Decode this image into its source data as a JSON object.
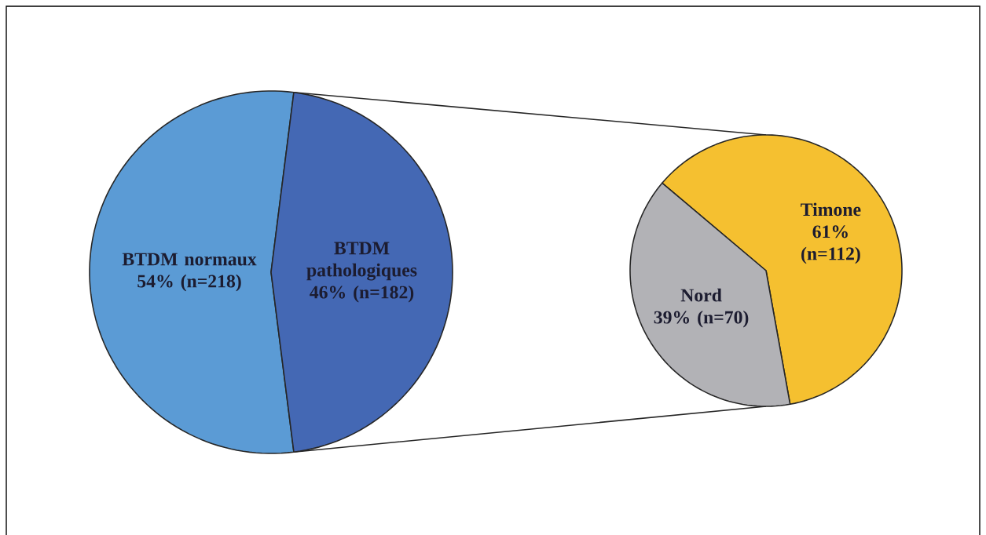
{
  "chart_data": [
    {
      "type": "pie",
      "categories": [
        "BTDM normaux",
        "BTDM pathologiques"
      ],
      "values": [
        54,
        46
      ],
      "value_labels": [
        "54% (n=218)",
        "46% (n=182)"
      ],
      "colors": [
        "#5b9bd5",
        "#4468b4"
      ]
    },
    {
      "type": "pie",
      "categories": [
        "Timone",
        "Nord"
      ],
      "values": [
        61,
        39
      ],
      "value_labels": [
        "61% (n=112)",
        "39% (n=70)"
      ],
      "colors": [
        "#f5c030",
        "#b2b2b6"
      ]
    }
  ]
}
